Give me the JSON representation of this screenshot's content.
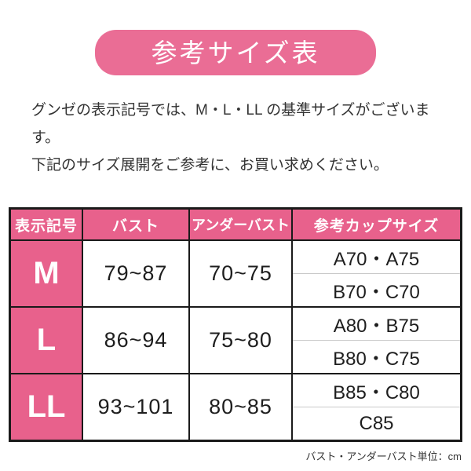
{
  "banner": {
    "title": "参考サイズ表"
  },
  "intro": {
    "line1": "グンゼの表示記号では、M・L・LL の基準サイズがございます。",
    "line2": "下記のサイズ展開をご参考に、お買い求めください。"
  },
  "table": {
    "headers": [
      "表示記号",
      "バスト",
      "アンダーバスト",
      "参考カップサイズ"
    ],
    "rows": [
      {
        "size": "M",
        "bust": "79~87",
        "underbust": "70~75",
        "cup_top": "A70・A75",
        "cup_bottom": "B70・C70"
      },
      {
        "size": "L",
        "bust": "86~94",
        "underbust": "75~80",
        "cup_top": "A80・B75",
        "cup_bottom": "B80・C75"
      },
      {
        "size": "LL",
        "bust": "93~101",
        "underbust": "80~85",
        "cup_top": "B85・C80",
        "cup_bottom": "C85"
      }
    ],
    "footnote": "バスト・アンダーバスト単位：cm"
  },
  "colors": {
    "banner_pink": "#ea6d95",
    "table_pink": "#e8618c",
    "border_dark": "#1a1a1a",
    "cup_divider_gray": "#c9c9c9",
    "text_dark": "#1e1e1e"
  }
}
